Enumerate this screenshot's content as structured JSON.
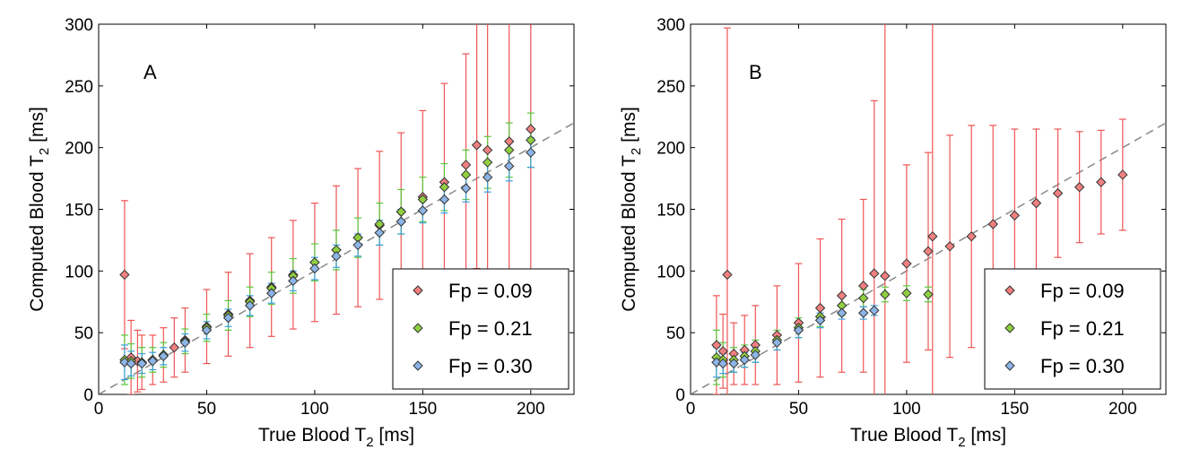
{
  "chart_data": [
    {
      "type": "scatter",
      "panel_label": "A",
      "xlabel": "True Blood T",
      "ylabel": "Computed Blood T",
      "label_subscript": "2",
      "label_unit": "[ms]",
      "xlim": [
        0,
        220
      ],
      "ylim": [
        0,
        300
      ],
      "xticks": [
        0,
        50,
        100,
        150,
        200
      ],
      "yticks": [
        0,
        50,
        100,
        150,
        200,
        250,
        300
      ],
      "identity_line": true,
      "legend_position": "bottom-right",
      "series": [
        {
          "name": "Fp = 0.09",
          "color": "#f08080",
          "bar_color": "#ee5555",
          "x": [
            12,
            15,
            18,
            20,
            25,
            30,
            35,
            40,
            50,
            60,
            70,
            80,
            90,
            100,
            110,
            120,
            130,
            140,
            150,
            160,
            170,
            175,
            180,
            190,
            200
          ],
          "y": [
            97,
            30,
            27,
            26,
            28,
            32,
            38,
            44,
            55,
            65,
            76,
            87,
            97,
            107,
            117,
            127,
            137,
            148,
            160,
            172,
            186,
            202,
            198,
            205,
            215
          ],
          "err": [
            60,
            30,
            25,
            22,
            20,
            22,
            24,
            26,
            30,
            34,
            38,
            40,
            44,
            48,
            52,
            56,
            60,
            64,
            70,
            80,
            90,
            100,
            110,
            120,
            120
          ]
        },
        {
          "name": "Fp = 0.21",
          "color": "#90d040",
          "bar_color": "#5ac83c",
          "x": [
            12,
            15,
            20,
            25,
            30,
            40,
            50,
            60,
            70,
            80,
            90,
            100,
            110,
            120,
            130,
            140,
            150,
            160,
            170,
            180,
            190,
            200
          ],
          "y": [
            28,
            27,
            26,
            28,
            32,
            43,
            54,
            64,
            75,
            86,
            96,
            107,
            117,
            127,
            138,
            148,
            158,
            168,
            178,
            188,
            198,
            206
          ],
          "err": [
            20,
            14,
            12,
            10,
            10,
            10,
            11,
            12,
            12,
            13,
            14,
            15,
            16,
            16,
            17,
            18,
            18,
            19,
            20,
            21,
            22,
            22
          ]
        },
        {
          "name": "Fp = 0.30",
          "color": "#8cb4e6",
          "bar_color": "#3ca0dc",
          "x": [
            12,
            15,
            20,
            25,
            30,
            40,
            50,
            60,
            70,
            80,
            90,
            100,
            110,
            120,
            130,
            140,
            150,
            160,
            170,
            180,
            190,
            200
          ],
          "y": [
            26,
            25,
            25,
            27,
            31,
            42,
            52,
            62,
            72,
            82,
            92,
            102,
            112,
            121,
            131,
            140,
            149,
            158,
            167,
            176,
            185,
            196
          ],
          "err": [
            14,
            10,
            8,
            7,
            7,
            7,
            7,
            7,
            8,
            8,
            8,
            9,
            9,
            9,
            10,
            10,
            10,
            11,
            11,
            12,
            12,
            12
          ]
        }
      ]
    },
    {
      "type": "scatter",
      "panel_label": "B",
      "xlabel": "True Blood T",
      "ylabel": "Computed Blood T",
      "label_subscript": "2",
      "label_unit": "[ms]",
      "xlim": [
        0,
        220
      ],
      "ylim": [
        0,
        300
      ],
      "xticks": [
        0,
        50,
        100,
        150,
        200
      ],
      "yticks": [
        0,
        50,
        100,
        150,
        200,
        250,
        300
      ],
      "identity_line": true,
      "legend_position": "bottom-right",
      "series": [
        {
          "name": "Fp = 0.09",
          "color": "#f08080",
          "bar_color": "#ee5555",
          "x": [
            12,
            15,
            17,
            20,
            25,
            30,
            40,
            50,
            60,
            70,
            80,
            85,
            90,
            100,
            110,
            112,
            120,
            130,
            140,
            150,
            160,
            170,
            180,
            190,
            200
          ],
          "y": [
            40,
            35,
            97,
            33,
            36,
            40,
            48,
            58,
            70,
            80,
            88,
            98,
            96,
            106,
            116,
            128,
            120,
            128,
            138,
            145,
            155,
            163,
            168,
            172,
            178
          ],
          "err": [
            40,
            30,
            200,
            25,
            28,
            32,
            40,
            48,
            56,
            62,
            70,
            140,
            240,
            80,
            80,
            250,
            90,
            90,
            80,
            70,
            60,
            52,
            45,
            42,
            45
          ]
        },
        {
          "name": "Fp = 0.21",
          "color": "#90d040",
          "bar_color": "#5ac83c",
          "x": [
            12,
            15,
            20,
            25,
            30,
            40,
            50,
            60,
            70,
            80,
            90,
            100,
            110
          ],
          "y": [
            30,
            28,
            28,
            31,
            35,
            44,
            54,
            63,
            72,
            78,
            81,
            82,
            81
          ],
          "err": [
            22,
            14,
            10,
            9,
            9,
            8,
            8,
            8,
            8,
            7,
            6,
            6,
            6
          ]
        },
        {
          "name": "Fp = 0.30",
          "color": "#8cb4e6",
          "bar_color": "#3ca0dc",
          "x": [
            12,
            15,
            20,
            25,
            30,
            40,
            50,
            60,
            70,
            80,
            85
          ],
          "y": [
            26,
            25,
            25,
            28,
            32,
            42,
            52,
            60,
            66,
            66,
            68
          ],
          "err": [
            12,
            8,
            7,
            6,
            6,
            6,
            6,
            6,
            5,
            5,
            4
          ]
        }
      ]
    }
  ]
}
